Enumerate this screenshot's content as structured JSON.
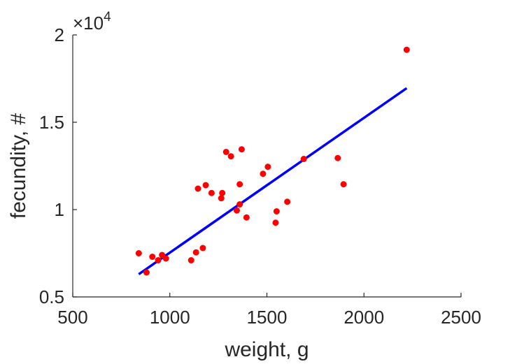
{
  "chart_data": {
    "type": "scatter",
    "title": "",
    "xlabel": "weight, g",
    "ylabel": "fecundity, #",
    "y_multiplier_label": "×10",
    "y_multiplier_exponent": "4",
    "xlim": [
      500,
      2500
    ],
    "ylim": [
      5000,
      20000
    ],
    "x_ticks": [
      500,
      1000,
      1500,
      2000,
      2500
    ],
    "x_tick_labels": [
      "500",
      "1000",
      "1500",
      "2000",
      "2500"
    ],
    "y_ticks": [
      5000,
      10000,
      15000,
      20000
    ],
    "y_tick_labels": [
      "0.5",
      "1",
      "1.5",
      "2"
    ],
    "grid": false,
    "colors": {
      "points": "#ff0000",
      "fit_line": "#0000ff",
      "axis": "#262626"
    },
    "series": [
      {
        "type": "scatter",
        "x": [
          840,
          880,
          910,
          940,
          960,
          980,
          1110,
          1135,
          1145,
          1170,
          1185,
          1215,
          1265,
          1270,
          1290,
          1315,
          1345,
          1360,
          1360,
          1370,
          1395,
          1480,
          1505,
          1545,
          1550,
          1605,
          1690,
          1865,
          1895,
          2220
        ],
        "y": [
          7500,
          6400,
          7300,
          7100,
          7400,
          7200,
          7100,
          7550,
          11200,
          7800,
          11400,
          10950,
          10650,
          10950,
          13300,
          13050,
          9950,
          10300,
          11450,
          13450,
          9550,
          12050,
          12450,
          9250,
          9900,
          10450,
          12900,
          12950,
          11450,
          19150
        ]
      },
      {
        "type": "line",
        "x": [
          840,
          2220
        ],
        "y": [
          6300,
          16950
        ]
      }
    ]
  }
}
